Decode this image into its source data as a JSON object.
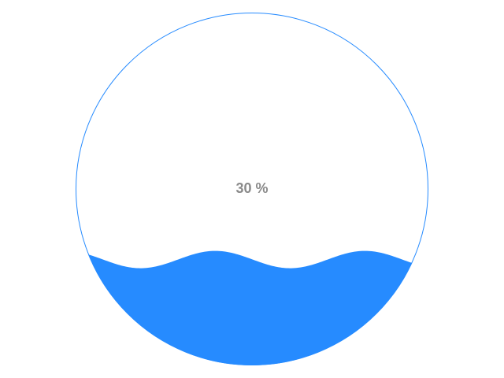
{
  "gauge": {
    "label": "30 %",
    "level_percent": 30,
    "colors": {
      "wave": "#268bff",
      "outline": "#268bff",
      "label": "#8a8a8a",
      "background": "#ffffff"
    }
  }
}
